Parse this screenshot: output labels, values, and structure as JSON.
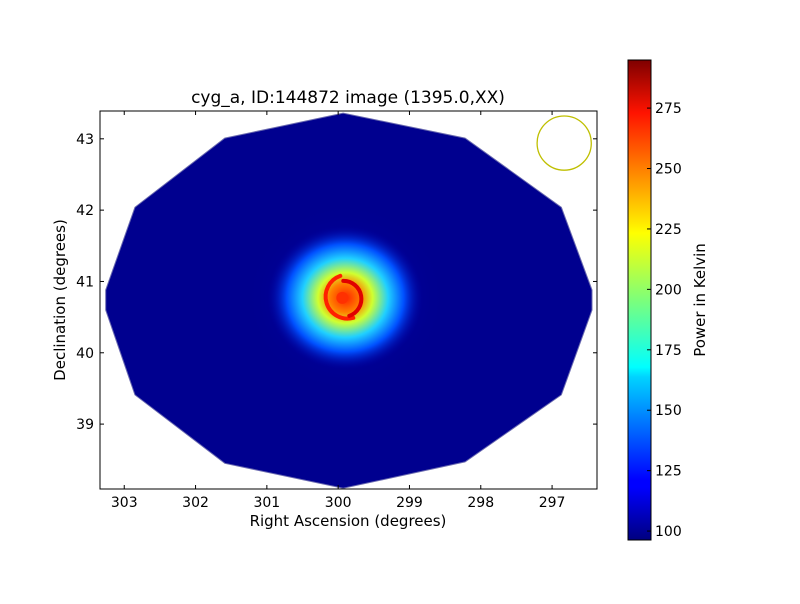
{
  "chart_data": {
    "type": "heatmap",
    "title": "cyg_a, ID:144872 image (1395.0,XX)",
    "xlabel": "Right Ascension (degrees)",
    "ylabel": "Declination (degrees)",
    "xlim": [
      303.34,
      296.37
    ],
    "ylim": [
      38.09,
      43.39
    ],
    "xticks": [
      303,
      302,
      301,
      300,
      299,
      298,
      297
    ],
    "yticks": [
      39,
      40,
      41,
      42,
      43
    ],
    "footprint_deg": [
      [
        299.93,
        43.36
      ],
      [
        301.59,
        43.01
      ],
      [
        302.85,
        42.04
      ],
      [
        303.26,
        40.88
      ],
      [
        303.26,
        40.6
      ],
      [
        302.85,
        39.41
      ],
      [
        301.59,
        38.45
      ],
      [
        299.93,
        38.1
      ],
      [
        298.22,
        38.47
      ],
      [
        296.87,
        39.41
      ],
      [
        296.44,
        40.6
      ],
      [
        296.44,
        40.88
      ],
      [
        296.87,
        42.04
      ],
      [
        298.22,
        43.01
      ]
    ],
    "background_level_K": 100,
    "source": {
      "ra": 299.9,
      "dec": 40.77,
      "peak_K": 290
    },
    "beam": {
      "ra": 296.83,
      "dec": 42.94,
      "radius_deg": 0.38,
      "color": "#bfbf00"
    },
    "colorbar": {
      "label": "Power in Kelvin",
      "vmin": 96.3,
      "vmax": 294.9,
      "ticks": [
        100,
        125,
        150,
        175,
        200,
        225,
        250,
        275
      ],
      "colormap": "jet"
    }
  }
}
